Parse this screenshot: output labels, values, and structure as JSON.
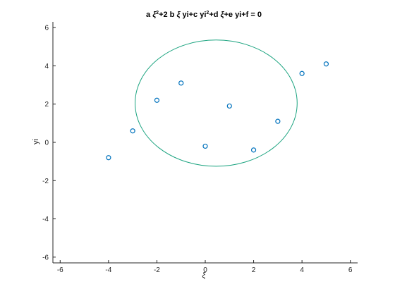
{
  "chart_data": {
    "type": "scatter",
    "title_parts": [
      "a ",
      "ξ",
      "2",
      "+2 b ",
      "ξ",
      " yi+c yi",
      "2",
      "+d ",
      "ξ",
      "+e yi+f = 0"
    ],
    "xlabel": "ξ",
    "ylabel": "yi",
    "xlim": [
      -6.3,
      6.3
    ],
    "ylim": [
      -6.3,
      6.3
    ],
    "xticks": [
      -6,
      -4,
      -2,
      0,
      2,
      4,
      6
    ],
    "yticks": [
      -6,
      -4,
      -2,
      0,
      2,
      4,
      6
    ],
    "grid": false,
    "series": [
      {
        "kind": "points",
        "marker": "circle",
        "color": "#0072BD",
        "x": [
          -4,
          -3,
          -2,
          -1,
          0,
          1,
          2,
          3,
          4,
          5
        ],
        "y": [
          -0.8,
          0.6,
          2.2,
          3.1,
          -0.2,
          1.9,
          -0.4,
          1.1,
          3.6,
          4.1
        ]
      },
      {
        "kind": "ellipse",
        "color": "#1AA37F",
        "center": [
          0.45,
          2.05
        ],
        "semi_axis_x": 3.35,
        "semi_axis_y": 3.3
      }
    ]
  }
}
